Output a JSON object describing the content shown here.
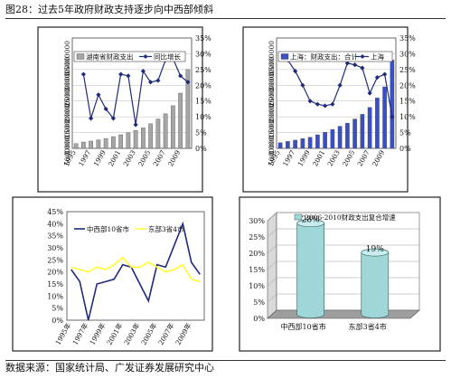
{
  "figure_title": "图28：过去5年政府财政支持逐步向中西部倾斜",
  "source": "数据来源：国家统计局、广发证券发展研究中心",
  "chart_data": [
    {
      "type": "bar+line",
      "title": "",
      "x": [
        "1995",
        "1996",
        "1997",
        "1998",
        "1999",
        "2000",
        "2001",
        "2002",
        "2003",
        "2004",
        "2005",
        "2006",
        "2007",
        "2008",
        "2009",
        "2010"
      ],
      "xticks": [
        "1995",
        "1997",
        "1999",
        "2001",
        "2003",
        "2005",
        "2007",
        "2009"
      ],
      "series": [
        {
          "name": "湖南省财政支出",
          "kind": "bar",
          "axis": "left",
          "color": "#a6a6a6",
          "values": [
            1500000,
            2000000,
            2300000,
            2700000,
            3100000,
            3700000,
            4300000,
            5000000,
            5700000,
            6500000,
            7800000,
            9300000,
            11000000,
            13500000,
            17500000,
            25000000
          ]
        },
        {
          "name": "同比增长",
          "kind": "line",
          "axis": "right",
          "color": "#1f2a7a",
          "values": [
            null,
            0.235,
            0.095,
            0.17,
            0.125,
            0.095,
            0.235,
            0.23,
            0.075,
            0.245,
            0.21,
            0.215,
            0.28,
            0.285,
            0.23,
            0.21
          ]
        }
      ],
      "yleft": {
        "min": 0,
        "max": 35000000,
        "ticks": [
          "0",
          "5000000",
          "10000000",
          "15000000",
          "20000000",
          "25000000",
          "30000000",
          "35000000"
        ]
      },
      "yright": {
        "min": 0,
        "max": 0.35,
        "ticks": [
          "0%",
          "5%",
          "10%",
          "15%",
          "20%",
          "25%",
          "30%",
          "35%"
        ]
      },
      "legend_position": "top"
    },
    {
      "type": "bar+line",
      "title": "",
      "x": [
        "1995",
        "1996",
        "1997",
        "1998",
        "1999",
        "2000",
        "2001",
        "2002",
        "2003",
        "2004",
        "2005",
        "2006",
        "2007",
        "2008",
        "2009",
        "2010"
      ],
      "xticks": [
        "1995",
        "1997",
        "1999",
        "2001",
        "2003",
        "2005",
        "2007",
        "2009"
      ],
      "series": [
        {
          "name": "上海：财政支出：合计",
          "kind": "bar",
          "axis": "left",
          "color": "#3a4fc2",
          "values": [
            1800000,
            2200000,
            2600000,
            3100000,
            3500000,
            4300000,
            5100000,
            6000000,
            7000000,
            8000000,
            9300000,
            10800000,
            13000000,
            16000000,
            19500000,
            28000000
          ]
        },
        {
          "name": "上海",
          "kind": "line",
          "axis": "right",
          "color": "#1f2a7a",
          "values": [
            null,
            0.28,
            0.245,
            0.2,
            0.15,
            0.14,
            0.135,
            0.14,
            0.2,
            0.27,
            0.265,
            0.255,
            0.175,
            0.225,
            0.235,
            0.1
          ]
        }
      ],
      "yleft": {
        "min": 0,
        "max": 35000000,
        "ticks": [
          "0",
          "5000000",
          "10000000",
          "15000000",
          "20000000",
          "25000000",
          "30000000",
          "35000000"
        ]
      },
      "yright": {
        "min": 0,
        "max": 0.35,
        "ticks": [
          "0%",
          "5%",
          "10%",
          "15%",
          "20%",
          "25%",
          "30%",
          "35%"
        ]
      },
      "legend_position": "top"
    },
    {
      "type": "line",
      "title": "",
      "x": [
        "1995年",
        "1996年",
        "1997年",
        "1998年",
        "1999年",
        "2000年",
        "2001年",
        "2002年",
        "2003年",
        "2004年",
        "2005年",
        "2006年",
        "2007年",
        "2008年",
        "2009年",
        "2010年"
      ],
      "xticks": [
        "1995年",
        "1997年",
        "1999年",
        "2001年",
        "2003年",
        "2005年",
        "2007年",
        "2009年"
      ],
      "series": [
        {
          "name": "中西部10省市",
          "color": "#1f2a7a",
          "values": [
            0.21,
            0.16,
            0.0,
            0.15,
            0.16,
            0.17,
            0.23,
            0.22,
            0.15,
            0.08,
            0.23,
            0.22,
            0.31,
            0.4,
            0.24,
            0.19
          ]
        },
        {
          "name": "东部3省4市",
          "color": "#ffff33",
          "values": [
            0.22,
            0.21,
            0.2,
            0.22,
            0.21,
            0.23,
            0.26,
            0.22,
            0.22,
            0.24,
            0.22,
            0.2,
            0.21,
            0.23,
            0.17,
            0.16
          ]
        }
      ],
      "ylim": [
        0,
        0.45
      ],
      "yticks": [
        "0%",
        "5%",
        "10%",
        "15%",
        "20%",
        "25%",
        "30%",
        "35%",
        "40%",
        "45%"
      ],
      "legend_position": "top"
    },
    {
      "type": "bar",
      "title": "",
      "categories": [
        "中西部10省市",
        "东部3省4市"
      ],
      "values": [
        0.28,
        0.19
      ],
      "data_labels": [
        "28%",
        "19%"
      ],
      "series_name": "2006-2010财政支出复合增速",
      "color": "#9fd7d8",
      "ylim": [
        0,
        0.3
      ],
      "yticks": [
        "0%",
        "5%",
        "10%",
        "15%",
        "20%",
        "25%",
        "30%"
      ],
      "legend_position": "top-right"
    }
  ]
}
